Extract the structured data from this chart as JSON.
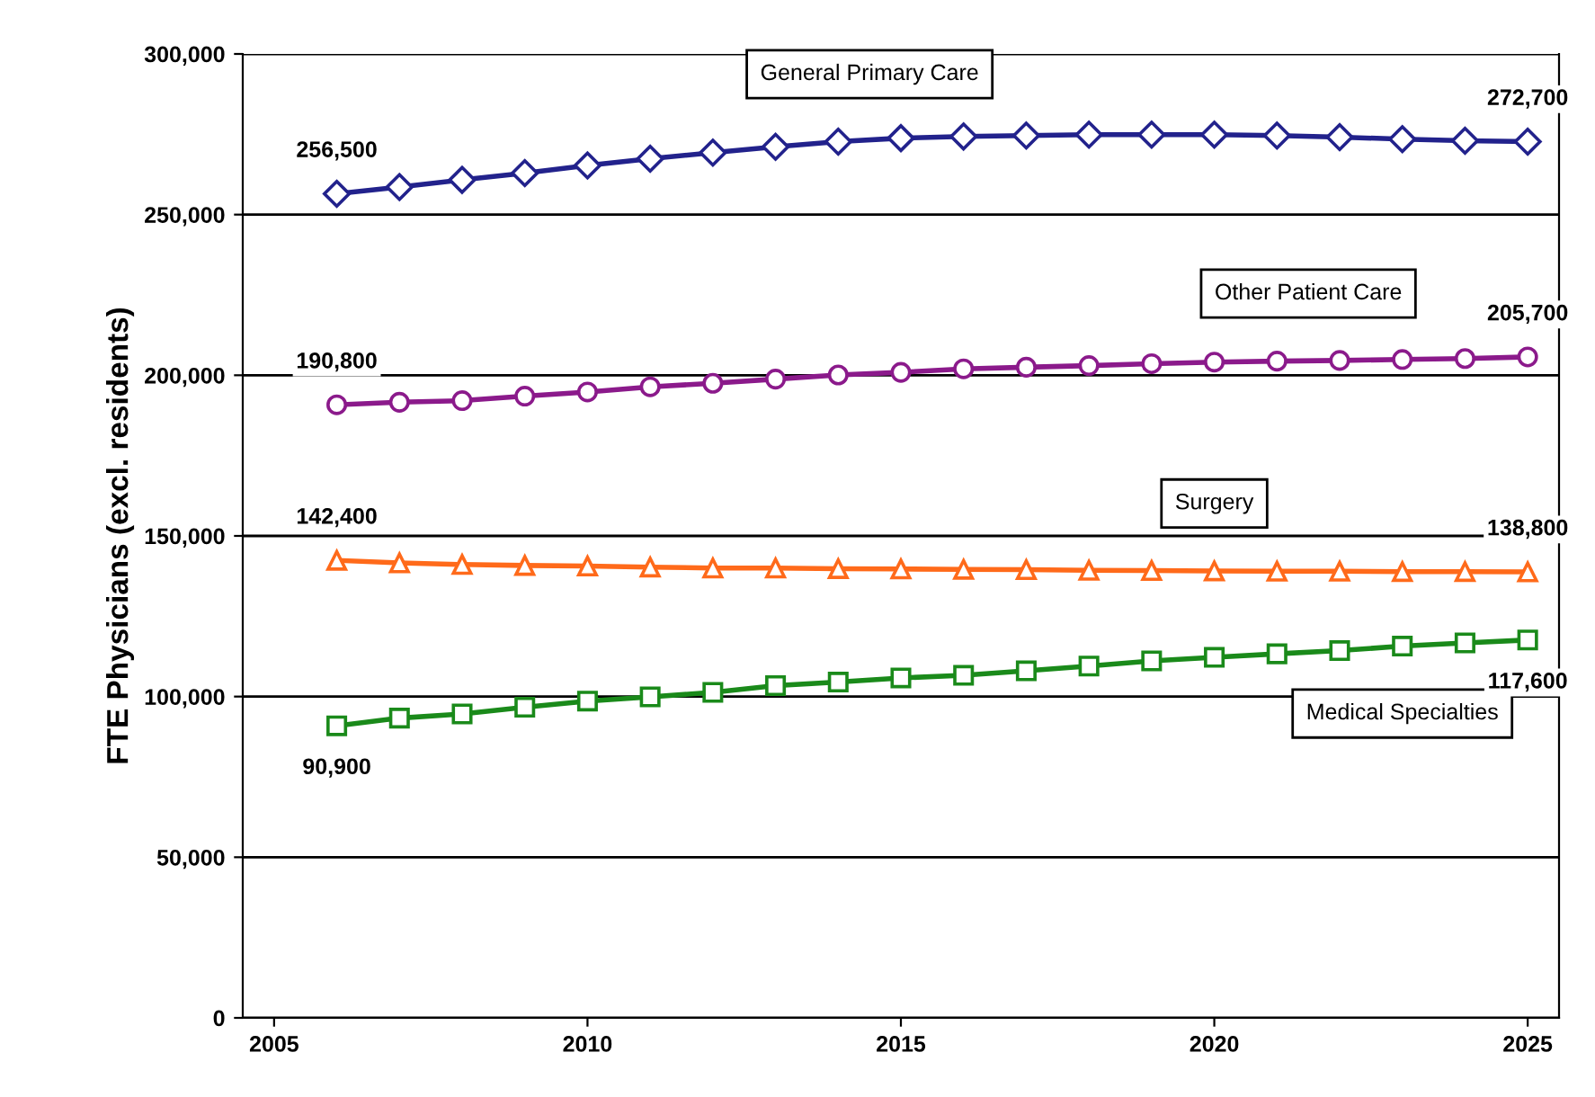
{
  "chart_data": {
    "type": "line",
    "ylabel": "FTE Physicians (excl. residents)",
    "x": [
      2006,
      2007,
      2008,
      2009,
      2010,
      2011,
      2012,
      2013,
      2014,
      2015,
      2016,
      2017,
      2018,
      2019,
      2020,
      2021,
      2022,
      2023,
      2024,
      2025
    ],
    "xlim": [
      2004.5,
      2025.5
    ],
    "xticks": [
      2005,
      2010,
      2015,
      2020,
      2025
    ],
    "ylim": [
      0,
      300000
    ],
    "yticks": [
      {
        "value": 0,
        "label": "0"
      },
      {
        "value": 50000,
        "label": "50,000"
      },
      {
        "value": 100000,
        "label": "100,000"
      },
      {
        "value": 150000,
        "label": "150,000"
      },
      {
        "value": 200000,
        "label": "200,000"
      },
      {
        "value": 250000,
        "label": "250,000"
      },
      {
        "value": 300000,
        "label": "300,000"
      }
    ],
    "grid": "y",
    "line_style": "solid",
    "series": [
      {
        "name": "General Primary Care",
        "color": "#22228c",
        "marker": "diamond",
        "values": [
          256500,
          258600,
          260800,
          262900,
          265300,
          267400,
          269300,
          271100,
          272700,
          273800,
          274300,
          274600,
          274900,
          274900,
          274900,
          274600,
          274100,
          273500,
          273000,
          272700
        ],
        "value_labels": [
          "256,500",
          null,
          null,
          null,
          null,
          null,
          null,
          null,
          null,
          null,
          null,
          null,
          null,
          null,
          null,
          null,
          null,
          null,
          null,
          "272,700"
        ]
      },
      {
        "name": "Other Patient Care",
        "color": "#8b1a8b",
        "marker": "circle",
        "values": [
          190800,
          191600,
          192100,
          193500,
          194800,
          196400,
          197500,
          198800,
          200100,
          200900,
          202000,
          202500,
          203000,
          203600,
          204100,
          204400,
          204600,
          204900,
          205200,
          205700
        ],
        "value_labels": [
          "190,800",
          null,
          null,
          null,
          null,
          null,
          null,
          null,
          null,
          null,
          null,
          null,
          null,
          null,
          null,
          null,
          null,
          null,
          null,
          "205,700"
        ]
      },
      {
        "name": "Surgery",
        "color": "#ff6a1a",
        "marker": "triangle",
        "values": [
          142400,
          141600,
          141100,
          140800,
          140600,
          140300,
          140000,
          140000,
          139800,
          139700,
          139600,
          139500,
          139300,
          139200,
          139100,
          139000,
          139000,
          138900,
          138900,
          138800
        ],
        "value_labels": [
          "142,400",
          null,
          null,
          null,
          null,
          null,
          null,
          null,
          null,
          null,
          null,
          null,
          null,
          null,
          null,
          null,
          null,
          null,
          null,
          "138,800"
        ]
      },
      {
        "name": "Medical Specialties",
        "color": "#1a8a1a",
        "marker": "square",
        "values": [
          90900,
          93300,
          94600,
          96700,
          98600,
          99900,
          101300,
          103400,
          104500,
          105800,
          106600,
          108000,
          109500,
          111100,
          112200,
          113300,
          114300,
          115700,
          116700,
          117600
        ],
        "value_labels": [
          "90,900",
          null,
          null,
          null,
          null,
          null,
          null,
          null,
          null,
          null,
          null,
          null,
          null,
          null,
          null,
          null,
          null,
          null,
          null,
          "117,600"
        ]
      }
    ]
  }
}
